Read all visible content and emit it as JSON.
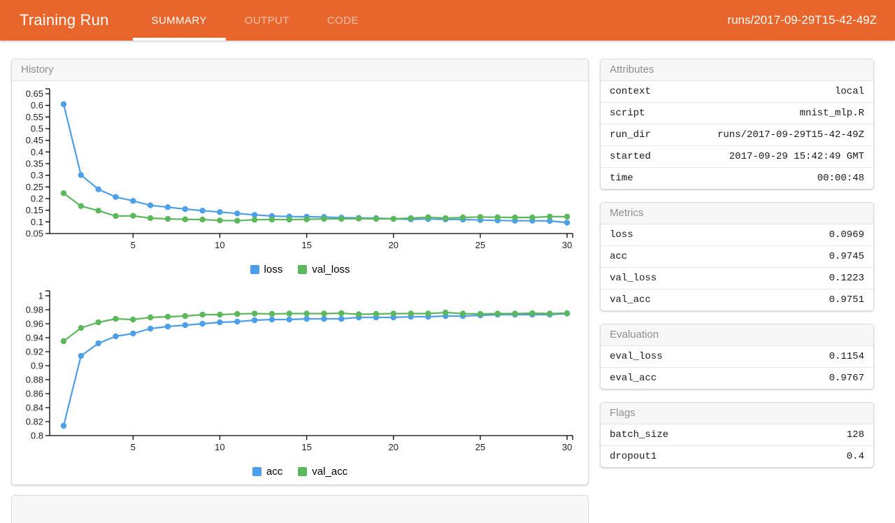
{
  "header": {
    "background": "#E8652C",
    "title": "Training Run",
    "tabs": [
      {
        "label": "SUMMARY",
        "active": true
      },
      {
        "label": "OUTPUT",
        "active": false
      },
      {
        "label": "CODE",
        "active": false
      }
    ],
    "run_path": "runs/2017-09-29T15-42-49Z"
  },
  "history_panel": {
    "title": "History"
  },
  "chart_data": [
    {
      "type": "line",
      "title": "",
      "xlabel": "",
      "ylabel": "",
      "x": [
        1,
        2,
        3,
        4,
        5,
        6,
        7,
        8,
        9,
        10,
        11,
        12,
        13,
        14,
        15,
        16,
        17,
        18,
        19,
        20,
        21,
        22,
        23,
        24,
        25,
        26,
        27,
        28,
        29,
        30
      ],
      "xticks": [
        5,
        10,
        15,
        20,
        25,
        30
      ],
      "ylim": [
        0.05,
        0.65
      ],
      "ytick_step": 0.05,
      "grid": false,
      "legend_position": "bottom",
      "series": [
        {
          "name": "loss",
          "color": "#4C9FE8",
          "values": [
            0.605,
            0.301,
            0.24,
            0.207,
            0.19,
            0.171,
            0.163,
            0.155,
            0.148,
            0.142,
            0.136,
            0.13,
            0.125,
            0.123,
            0.122,
            0.121,
            0.118,
            0.117,
            0.116,
            0.113,
            0.111,
            0.112,
            0.111,
            0.11,
            0.108,
            0.106,
            0.105,
            0.105,
            0.104,
            0.0969
          ]
        },
        {
          "name": "val_loss",
          "color": "#5CB85C",
          "values": [
            0.223,
            0.168,
            0.148,
            0.125,
            0.126,
            0.116,
            0.113,
            0.111,
            0.11,
            0.106,
            0.105,
            0.109,
            0.11,
            0.11,
            0.111,
            0.113,
            0.113,
            0.114,
            0.113,
            0.113,
            0.116,
            0.12,
            0.116,
            0.119,
            0.121,
            0.12,
            0.119,
            0.119,
            0.123,
            0.1223
          ]
        }
      ]
    },
    {
      "type": "line",
      "title": "",
      "xlabel": "",
      "ylabel": "",
      "x": [
        1,
        2,
        3,
        4,
        5,
        6,
        7,
        8,
        9,
        10,
        11,
        12,
        13,
        14,
        15,
        16,
        17,
        18,
        19,
        20,
        21,
        22,
        23,
        24,
        25,
        26,
        27,
        28,
        29,
        30
      ],
      "xticks": [
        5,
        10,
        15,
        20,
        25,
        30
      ],
      "ylim": [
        0.8,
        1.0
      ],
      "ytick_step": 0.02,
      "grid": false,
      "legend_position": "bottom",
      "series": [
        {
          "name": "acc",
          "color": "#4C9FE8",
          "values": [
            0.814,
            0.914,
            0.932,
            0.942,
            0.946,
            0.953,
            0.956,
            0.958,
            0.96,
            0.962,
            0.963,
            0.965,
            0.966,
            0.966,
            0.967,
            0.967,
            0.967,
            0.969,
            0.969,
            0.969,
            0.97,
            0.97,
            0.971,
            0.971,
            0.972,
            0.973,
            0.973,
            0.973,
            0.973,
            0.9745
          ]
        },
        {
          "name": "val_acc",
          "color": "#5CB85C",
          "values": [
            0.935,
            0.954,
            0.962,
            0.967,
            0.966,
            0.969,
            0.97,
            0.971,
            0.973,
            0.973,
            0.974,
            0.9745,
            0.974,
            0.9745,
            0.9745,
            0.9745,
            0.975,
            0.9735,
            0.974,
            0.9745,
            0.9745,
            0.9745,
            0.976,
            0.9745,
            0.974,
            0.9745,
            0.9745,
            0.975,
            0.9745,
            0.9751
          ]
        }
      ]
    }
  ],
  "panels": [
    {
      "id": "attributes",
      "title": "Attributes",
      "rows": [
        {
          "key": "context",
          "value": "local"
        },
        {
          "key": "script",
          "value": "mnist_mlp.R"
        },
        {
          "key": "run_dir",
          "value": "runs/2017-09-29T15-42-49Z"
        },
        {
          "key": "started",
          "value": "2017-09-29 15:42:49 GMT"
        },
        {
          "key": "time",
          "value": "00:00:48"
        }
      ]
    },
    {
      "id": "metrics",
      "title": "Metrics",
      "rows": [
        {
          "key": "loss",
          "value": "0.0969"
        },
        {
          "key": "acc",
          "value": "0.9745"
        },
        {
          "key": "val_loss",
          "value": "0.1223"
        },
        {
          "key": "val_acc",
          "value": "0.9751"
        }
      ]
    },
    {
      "id": "evaluation",
      "title": "Evaluation",
      "rows": [
        {
          "key": "eval_loss",
          "value": "0.1154"
        },
        {
          "key": "eval_acc",
          "value": "0.9767"
        }
      ]
    },
    {
      "id": "flags",
      "title": "Flags",
      "rows": [
        {
          "key": "batch_size",
          "value": "128"
        },
        {
          "key": "dropout1",
          "value": "0.4"
        }
      ]
    }
  ]
}
